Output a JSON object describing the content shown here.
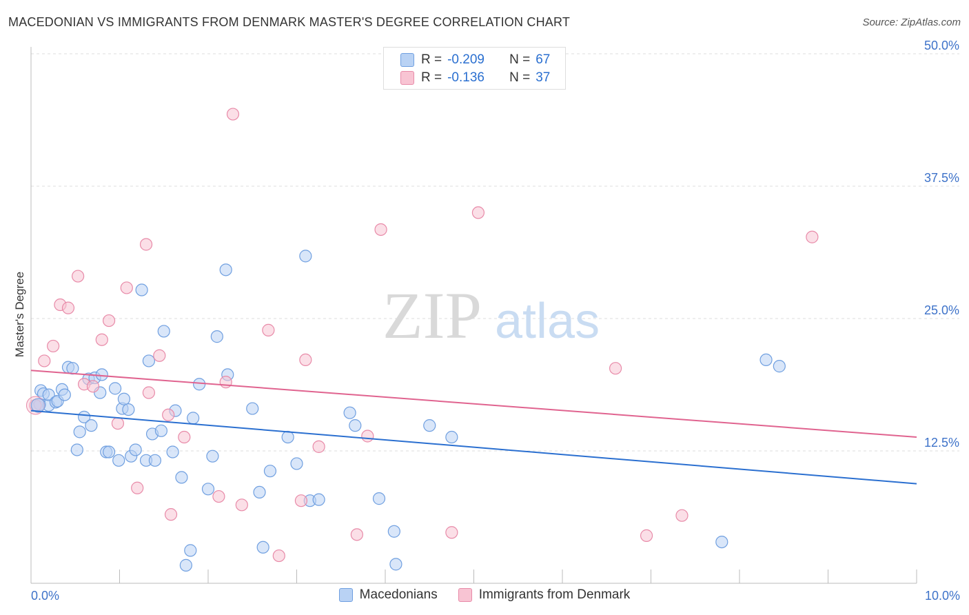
{
  "header": {
    "title": "MACEDONIAN VS IMMIGRANTS FROM DENMARK MASTER'S DEGREE CORRELATION CHART",
    "source": "Source: ZipAtlas.com"
  },
  "watermark": {
    "zip": "ZIP",
    "atlas": "atlas"
  },
  "legend": {
    "rows": [
      {
        "r_label": "R =",
        "r_value": "-0.209",
        "n_label": "N =",
        "n_value": "67"
      },
      {
        "r_label": "R =",
        "r_value": "-0.136",
        "n_label": "N =",
        "n_value": "37"
      }
    ],
    "bottom": [
      "Macedonians",
      "Immigrants from Denmark"
    ]
  },
  "colors": {
    "blue_fill": "#b9d2f4",
    "blue_stroke": "#6f9fe0",
    "blue_line": "#2a6fd0",
    "pink_fill": "#f8c4d3",
    "pink_stroke": "#e88aa8",
    "pink_line": "#e0638f",
    "tick_text": "#3d72c9",
    "grid": "#dddddd"
  },
  "chart_data": {
    "type": "scatter",
    "title": "MACEDONIAN VS IMMIGRANTS FROM DENMARK MASTER'S DEGREE CORRELATION CHART",
    "xlabel": "",
    "ylabel": "Master's Degree",
    "xlim": [
      0,
      10
    ],
    "ylim": [
      0,
      50
    ],
    "x_tick_labels": [
      "0.0%",
      "10.0%"
    ],
    "y_ticks": [
      12.5,
      25.0,
      37.5,
      50.0
    ],
    "y_tick_labels": [
      "12.5%",
      "25.0%",
      "37.5%",
      "50.0%"
    ],
    "series": [
      {
        "name": "Macedonians",
        "r": -0.209,
        "n": 67,
        "trend": {
          "x": [
            0,
            10
          ],
          "y": [
            16.3,
            9.4
          ]
        },
        "points": [
          [
            0.08,
            16.7
          ],
          [
            0.1,
            16.9
          ],
          [
            0.11,
            18.2
          ],
          [
            0.14,
            17.9
          ],
          [
            0.2,
            16.8
          ],
          [
            0.2,
            17.8
          ],
          [
            0.28,
            17.1
          ],
          [
            0.3,
            17.2
          ],
          [
            0.35,
            18.3
          ],
          [
            0.38,
            17.8
          ],
          [
            0.42,
            20.4
          ],
          [
            0.47,
            20.3
          ],
          [
            0.52,
            12.6
          ],
          [
            0.55,
            14.3
          ],
          [
            0.6,
            15.7
          ],
          [
            0.65,
            19.3
          ],
          [
            0.68,
            14.9
          ],
          [
            0.72,
            19.4
          ],
          [
            0.78,
            18.0
          ],
          [
            0.8,
            19.7
          ],
          [
            0.85,
            12.4
          ],
          [
            0.88,
            12.4
          ],
          [
            0.95,
            18.4
          ],
          [
            0.99,
            11.6
          ],
          [
            1.03,
            16.5
          ],
          [
            1.05,
            17.4
          ],
          [
            1.1,
            16.4
          ],
          [
            1.13,
            12.0
          ],
          [
            1.18,
            12.6
          ],
          [
            1.25,
            27.7
          ],
          [
            1.3,
            11.6
          ],
          [
            1.33,
            21.0
          ],
          [
            1.37,
            14.1
          ],
          [
            1.4,
            11.6
          ],
          [
            1.47,
            14.4
          ],
          [
            1.5,
            23.8
          ],
          [
            1.6,
            12.4
          ],
          [
            1.63,
            16.3
          ],
          [
            1.7,
            10.0
          ],
          [
            1.75,
            1.7
          ],
          [
            1.8,
            3.1
          ],
          [
            1.83,
            15.6
          ],
          [
            1.9,
            18.8
          ],
          [
            2.0,
            8.9
          ],
          [
            2.05,
            12.0
          ],
          [
            2.1,
            23.3
          ],
          [
            2.2,
            29.6
          ],
          [
            2.22,
            19.7
          ],
          [
            2.5,
            16.5
          ],
          [
            2.58,
            8.6
          ],
          [
            2.62,
            3.4
          ],
          [
            2.7,
            10.6
          ],
          [
            2.9,
            13.8
          ],
          [
            3.0,
            11.3
          ],
          [
            3.1,
            30.9
          ],
          [
            3.15,
            7.8
          ],
          [
            3.25,
            7.9
          ],
          [
            3.6,
            16.1
          ],
          [
            3.66,
            14.9
          ],
          [
            3.93,
            8.0
          ],
          [
            4.1,
            4.9
          ],
          [
            4.12,
            1.8
          ],
          [
            4.5,
            14.9
          ],
          [
            4.75,
            13.8
          ],
          [
            8.3,
            21.1
          ],
          [
            8.45,
            20.5
          ],
          [
            7.8,
            3.9
          ]
        ]
      },
      {
        "name": "Immigrants from Denmark",
        "r": -0.136,
        "n": 37,
        "trend": {
          "x": [
            0,
            10
          ],
          "y": [
            20.1,
            13.8
          ]
        },
        "points": [
          [
            0.05,
            16.8
          ],
          [
            0.15,
            21.0
          ],
          [
            0.25,
            22.4
          ],
          [
            0.33,
            26.3
          ],
          [
            0.42,
            26.0
          ],
          [
            0.53,
            29.0
          ],
          [
            0.6,
            18.8
          ],
          [
            0.7,
            18.6
          ],
          [
            0.8,
            23.0
          ],
          [
            0.88,
            24.8
          ],
          [
            0.98,
            15.1
          ],
          [
            1.08,
            27.9
          ],
          [
            1.2,
            9.0
          ],
          [
            1.3,
            32.0
          ],
          [
            1.33,
            18.0
          ],
          [
            1.45,
            21.5
          ],
          [
            1.55,
            15.9
          ],
          [
            1.58,
            6.5
          ],
          [
            1.73,
            13.8
          ],
          [
            2.12,
            8.2
          ],
          [
            2.2,
            19.0
          ],
          [
            2.28,
            44.3
          ],
          [
            2.38,
            7.4
          ],
          [
            2.68,
            23.9
          ],
          [
            2.8,
            2.6
          ],
          [
            3.05,
            7.8
          ],
          [
            3.1,
            21.1
          ],
          [
            3.25,
            12.9
          ],
          [
            3.68,
            4.6
          ],
          [
            3.8,
            13.9
          ],
          [
            3.95,
            33.4
          ],
          [
            4.75,
            4.8
          ],
          [
            5.05,
            35.0
          ],
          [
            6.6,
            20.3
          ],
          [
            6.95,
            4.5
          ],
          [
            7.35,
            6.4
          ],
          [
            8.82,
            32.7
          ]
        ]
      }
    ]
  }
}
